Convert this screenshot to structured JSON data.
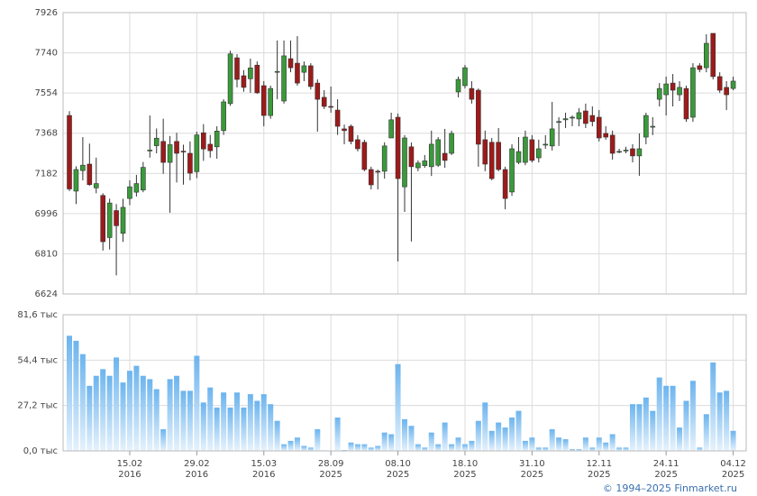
{
  "chart_data": [
    {
      "type": "candlestick",
      "up_color": "#3a9a3a",
      "down_color": "#9e1a1a",
      "edge_color": "#333333",
      "ylim": [
        6624,
        7926
      ],
      "yticks": [
        6624,
        6810,
        6996,
        7182,
        7368,
        7554,
        7740,
        7926
      ],
      "grid": true,
      "open": [
        7450,
        7100,
        7195,
        7225,
        7115,
        7080,
        6885,
        7010,
        6905,
        7066,
        7095,
        7105,
        7290,
        7310,
        7330,
        7233,
        7330,
        7285,
        7275,
        7190,
        7370,
        7317,
        7305,
        7380,
        7505,
        7717,
        7634,
        7620,
        7683,
        7588,
        7450,
        7650,
        7517,
        7713,
        7692,
        7650,
        7680,
        7600,
        7534,
        7492,
        7475,
        7388,
        7400,
        7338,
        7326,
        7200,
        7192,
        7192,
        7346,
        7442,
        7120,
        7305,
        7208,
        7218,
        7213,
        7220,
        7275,
        7275,
        7559,
        7588,
        7575,
        7567,
        7338,
        7326,
        7326,
        7200,
        7096,
        7233,
        7233,
        7338,
        7254,
        7313,
        7309,
        7420,
        7430,
        7438,
        7434,
        7471,
        7450,
        7442,
        7367,
        7359,
        7282,
        7288,
        7296,
        7263,
        7350,
        7400,
        7525,
        7546,
        7600,
        7546,
        7575,
        7442,
        7680,
        7671,
        7830,
        7630,
        7580,
        7575
      ],
      "high": [
        7470,
        7215,
        7350,
        7320,
        7255,
        7090,
        7065,
        7040,
        7065,
        7150,
        7175,
        7235,
        7450,
        7390,
        7435,
        7355,
        7370,
        7315,
        7330,
        7375,
        7410,
        7360,
        7400,
        7525,
        7750,
        7734,
        7660,
        7713,
        7700,
        7609,
        7588,
        7797,
        7797,
        7797,
        7817,
        7700,
        7692,
        7617,
        7567,
        7584,
        7525,
        7408,
        7408,
        7359,
        7338,
        7213,
        7200,
        7326,
        7463,
        7459,
        7359,
        7325,
        7242,
        7267,
        7380,
        7350,
        7388,
        7380,
        7630,
        7684,
        7609,
        7575,
        7380,
        7346,
        7392,
        7213,
        7317,
        7350,
        7380,
        7359,
        7338,
        7359,
        7513,
        7442,
        7463,
        7450,
        7484,
        7505,
        7492,
        7475,
        7400,
        7380,
        7296,
        7305,
        7317,
        7367,
        7463,
        7442,
        7600,
        7630,
        7642,
        7609,
        7588,
        7692,
        7692,
        7826,
        7830,
        7650,
        7609,
        7630
      ],
      "low": [
        7100,
        7040,
        7150,
        7125,
        7090,
        6825,
        6830,
        6710,
        6865,
        7035,
        7075,
        7095,
        7255,
        7275,
        7180,
        7000,
        7140,
        7130,
        7150,
        7160,
        7240,
        7255,
        7250,
        7360,
        7495,
        7580,
        7560,
        7555,
        7550,
        7400,
        7435,
        7525,
        7505,
        7650,
        7588,
        7609,
        7570,
        7375,
        7480,
        7463,
        7360,
        7317,
        7317,
        7284,
        7192,
        7108,
        7108,
        7158,
        7346,
        6775,
        7004,
        6867,
        7192,
        7208,
        7170,
        7212,
        7208,
        7267,
        7534,
        7575,
        7505,
        7213,
        7192,
        7150,
        7192,
        7016,
        7078,
        7225,
        7220,
        7233,
        7233,
        7296,
        7288,
        7309,
        7392,
        7400,
        7400,
        7392,
        7400,
        7330,
        7338,
        7246,
        7275,
        7275,
        7233,
        7171,
        7317,
        7359,
        7492,
        7450,
        7492,
        7517,
        7421,
        7421,
        7650,
        7650,
        7617,
        7555,
        7475,
        7567
      ],
      "close": [
        7110,
        7200,
        7220,
        7130,
        7135,
        6866,
        7045,
        6940,
        7025,
        7120,
        7135,
        7210,
        7290,
        7345,
        7233,
        7315,
        7275,
        7282,
        7183,
        7360,
        7295,
        7287,
        7378,
        7513,
        7735,
        7617,
        7580,
        7670,
        7555,
        7450,
        7575,
        7654,
        7726,
        7671,
        7600,
        7680,
        7584,
        7525,
        7492,
        7490,
        7400,
        7380,
        7330,
        7296,
        7200,
        7129,
        7190,
        7309,
        7430,
        7158,
        7346,
        7213,
        7230,
        7240,
        7317,
        7338,
        7242,
        7367,
        7617,
        7671,
        7525,
        7317,
        7225,
        7158,
        7200,
        7066,
        7296,
        7283,
        7350,
        7242,
        7296,
        7317,
        7388,
        7422,
        7435,
        7442,
        7463,
        7413,
        7422,
        7346,
        7350,
        7275,
        7284,
        7290,
        7263,
        7296,
        7450,
        7400,
        7575,
        7596,
        7567,
        7580,
        7434,
        7671,
        7663,
        7784,
        7630,
        7567,
        7546,
        7609
      ]
    },
    {
      "type": "bar",
      "color": "#6cb4ee",
      "ylim": [
        0,
        81.6
      ],
      "yticks": [
        {
          "value": 0,
          "label": "0,0 тыс"
        },
        {
          "value": 27.2,
          "label": "27,2 тыс"
        },
        {
          "value": 54.4,
          "label": "54,4 тыс"
        },
        {
          "value": 81.6,
          "label": "81,6 тыс"
        }
      ],
      "grid": true,
      "values": [
        69,
        66,
        58,
        39,
        45,
        49,
        45,
        56,
        41,
        48,
        51,
        45,
        43,
        37,
        13,
        43,
        45,
        36,
        36,
        57,
        29,
        38,
        26,
        35,
        26,
        35,
        26,
        34,
        30,
        34,
        28,
        18,
        4,
        6,
        8,
        3,
        2,
        13,
        0.3,
        0.2,
        20,
        0.5,
        5,
        4,
        4,
        2,
        3,
        11,
        10,
        52,
        19,
        15,
        4,
        2,
        11,
        4,
        17,
        4,
        8,
        4,
        6,
        18,
        29,
        12,
        17,
        14,
        20,
        24,
        6,
        8,
        2,
        2,
        13,
        8,
        7,
        1,
        1,
        8,
        2,
        8,
        5,
        10,
        2,
        2,
        28,
        28,
        32,
        24,
        44,
        39,
        39,
        14,
        30,
        42,
        2,
        22,
        53,
        35,
        36,
        12
      ],
      "xticks": [
        {
          "value": 9,
          "label": "15.02",
          "year": "2016"
        },
        {
          "value": 19,
          "label": "29.02",
          "year": "2016"
        },
        {
          "value": 29,
          "label": "15.03",
          "year": "2016"
        },
        {
          "value": 39,
          "label": "28.09",
          "year": "2025"
        },
        {
          "value": 49,
          "label": "08.10",
          "year": "2025"
        },
        {
          "value": 59,
          "label": "18.10",
          "year": "2025"
        },
        {
          "value": 69,
          "label": "31.10",
          "year": "2025"
        },
        {
          "value": 79,
          "label": "12.11",
          "year": "2025"
        },
        {
          "value": 89,
          "label": "24.11",
          "year": "2025"
        },
        {
          "value": 99,
          "label": "04.12",
          "year": "2025"
        }
      ]
    }
  ],
  "footer": "© 1994–2025 Finmarket.ru"
}
